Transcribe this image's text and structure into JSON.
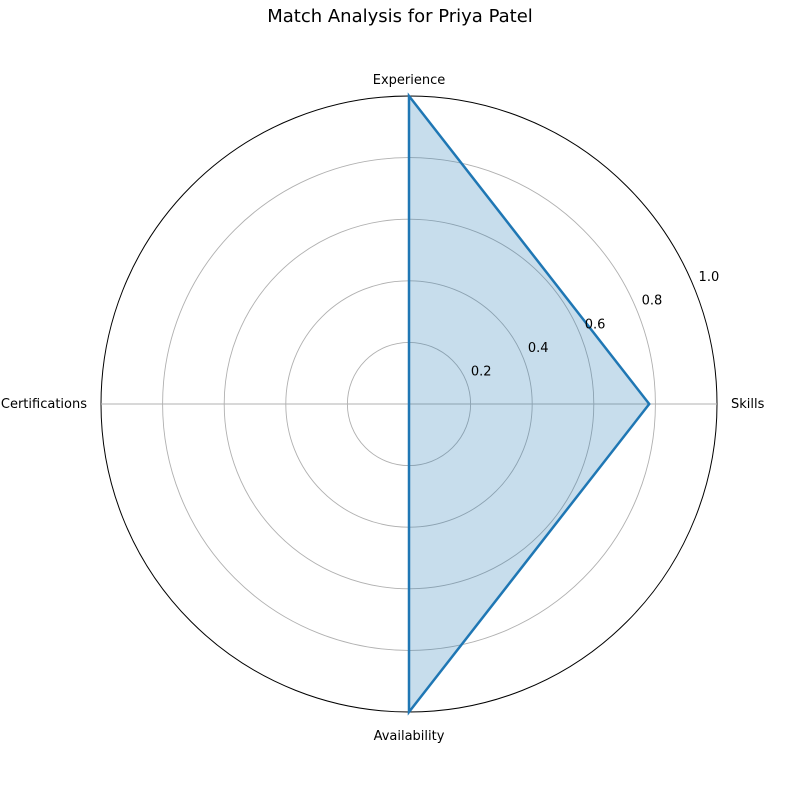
{
  "chart_data": {
    "type": "radar",
    "title": "Match Analysis for Priya Patel",
    "categories": [
      "Skills",
      "Experience",
      "Certifications",
      "Availability"
    ],
    "series": [
      {
        "values": [
          0.78,
          1.0,
          0.0,
          1.0
        ]
      }
    ],
    "rlim": [
      0,
      1.0
    ],
    "rticks": [
      0.2,
      0.4,
      0.6,
      0.8,
      1.0
    ],
    "rtick_labels": [
      "0.2",
      "0.4",
      "0.6",
      "0.8",
      "1.0"
    ],
    "grid": true,
    "colors": {
      "line": "#1f77b4",
      "fill": "#1f77b4",
      "grid": "#b0b0b0",
      "frame": "#000000"
    }
  }
}
